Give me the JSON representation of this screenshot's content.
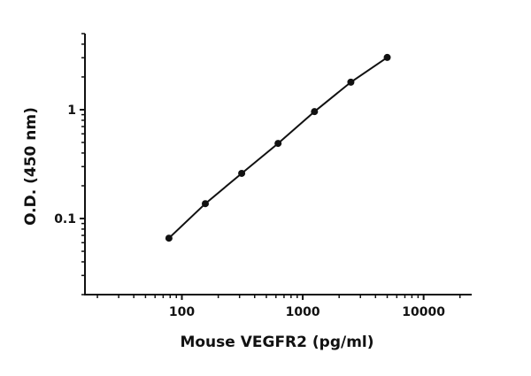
{
  "chart_data": {
    "type": "line",
    "title": "",
    "xlabel": "Mouse VEGFR2 (pg/ml)",
    "ylabel": "O.D. (450 nm)",
    "xscale": "log",
    "yscale": "log",
    "xlim": [
      15,
      25000
    ],
    "ylim": [
      0.02,
      5
    ],
    "x_ticks": [
      100,
      1000,
      10000
    ],
    "x_tick_labels": [
      "100",
      "1000",
      "10000"
    ],
    "y_ticks": [
      0.1,
      1
    ],
    "y_tick_labels": [
      "0.1",
      "1"
    ],
    "grid": false,
    "series": [
      {
        "x": [
          78.125,
          156.25,
          312.5,
          625,
          1250,
          2500,
          5000
        ],
        "y": [
          0.066,
          0.137,
          0.26,
          0.49,
          0.96,
          1.79,
          3.02
        ],
        "color": "#111111",
        "marker": "circle"
      }
    ]
  }
}
